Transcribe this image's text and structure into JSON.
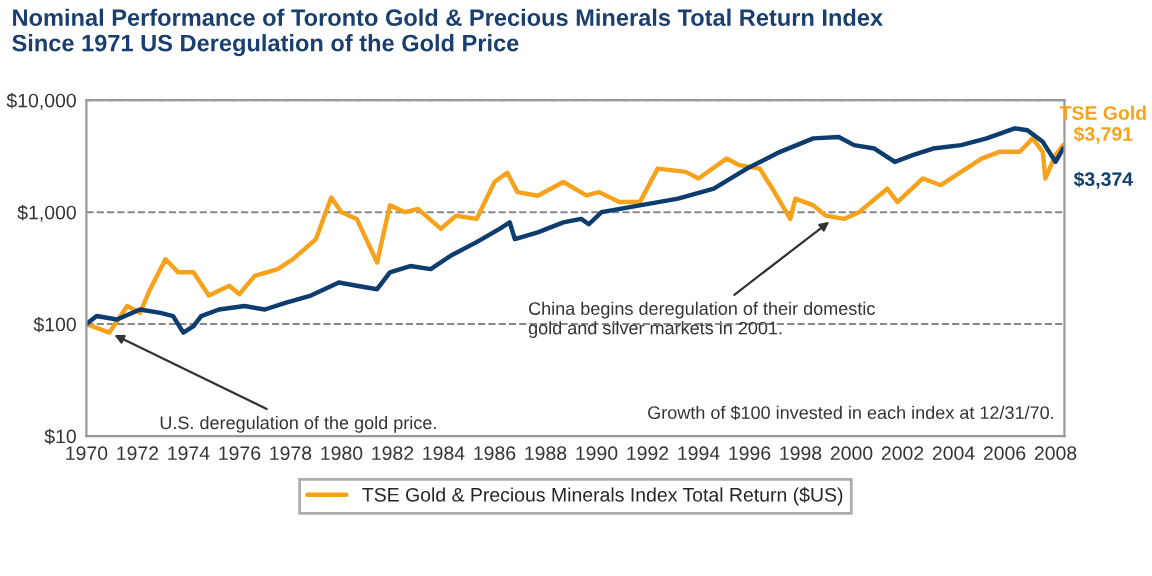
{
  "chart_data": {
    "type": "line",
    "title": "Nominal Performance of Toronto Gold & Precious Minerals Total Return Index\nSince 1971 US Deregulation of the Gold Price",
    "log": "y",
    "grid": "y",
    "line_style": "solid",
    "marker": "none",
    "legend": "bottom",
    "xlim": [
      1970,
      2008.35
    ],
    "xticks": [
      1970,
      1972,
      1974,
      1976,
      1978,
      1980,
      1982,
      1984,
      1986,
      1988,
      1990,
      1992,
      1994,
      1996,
      1998,
      2000,
      2002,
      2004,
      2006,
      2008
    ],
    "ylim": [
      10,
      10000
    ],
    "yticks": [
      {
        "value": 10,
        "label": "$10"
      },
      {
        "value": 100,
        "label": "$100"
      },
      {
        "value": 1000,
        "label": "$1,000"
      },
      {
        "value": 10000,
        "label": "$10,000"
      }
    ],
    "series": [
      {
        "name": "TSE Gold & Precious Minerals Index Total Return ($US)",
        "color": "#f7a21b",
        "x": [
          1970,
          1970.9,
          1971.6,
          1972.1,
          1972.5,
          1973.1,
          1973.6,
          1974.2,
          1974.8,
          1975.6,
          1976.0,
          1976.6,
          1977.5,
          1978.1,
          1979.0,
          1979.6,
          1980.0,
          1980.6,
          1981.4,
          1981.9,
          1982.5,
          1983.0,
          1983.9,
          1984.5,
          1985.3,
          1986.0,
          1986.5,
          1986.9,
          1987.7,
          1988.7,
          1989.6,
          1990.1,
          1990.9,
          1991.7,
          1992.4,
          1993.5,
          1994.0,
          1995.1,
          1995.6,
          1996.4,
          1996.9,
          1997.6,
          1997.8,
          1998.5,
          1999.0,
          1999.7,
          2000.3,
          2001.4,
          2001.8,
          2002.8,
          2003.5,
          2004.3,
          2005.1,
          2005.8,
          2006.6,
          2007.1,
          2007.5,
          2007.6,
          2008.0,
          2008.3
        ],
        "values": [
          100,
          84,
          145,
          126,
          205,
          380,
          290,
          290,
          180,
          220,
          185,
          270,
          310,
          380,
          575,
          1350,
          1000,
          870,
          355,
          1150,
          1000,
          1070,
          710,
          930,
          870,
          1860,
          2250,
          1510,
          1400,
          1860,
          1410,
          1510,
          1230,
          1230,
          2450,
          2290,
          2000,
          3010,
          2630,
          2450,
          1620,
          870,
          1320,
          1150,
          930,
          870,
          1000,
          1620,
          1230,
          2000,
          1740,
          2290,
          3010,
          3460,
          3460,
          4560,
          3460,
          2000,
          3230,
          3970
        ]
      },
      {
        "color": "#0d3c6e",
        "x": [
          1970,
          1970.4,
          1971.2,
          1972.1,
          1972.9,
          1973.4,
          1973.8,
          1974.2,
          1974.5,
          1975.2,
          1976.2,
          1977.0,
          1977.8,
          1978.8,
          1979.9,
          1980.6,
          1981.4,
          1981.9,
          1982.7,
          1983.5,
          1984.3,
          1985.3,
          1986.2,
          1986.6,
          1986.8,
          1987.7,
          1988.7,
          1989.4,
          1989.7,
          1990.2,
          1991.7,
          1993.2,
          1994.6,
          1995.9,
          1997.2,
          1998.5,
          1999.5,
          2000.1,
          2000.9,
          2001.7,
          2002.4,
          2003.2,
          2004.3,
          2005.3,
          2006.4,
          2006.9,
          2007.5,
          2008.0,
          2008.3
        ],
        "values": [
          100,
          118,
          110,
          135,
          126,
          118,
          84,
          96,
          118,
          135,
          145,
          135,
          155,
          180,
          235,
          220,
          205,
          290,
          330,
          310,
          410,
          540,
          710,
          810,
          575,
          660,
          810,
          870,
          780,
          1000,
          1150,
          1320,
          1620,
          2450,
          3460,
          4560,
          4690,
          3970,
          3700,
          2810,
          3230,
          3700,
          3970,
          4560,
          5600,
          5400,
          4250,
          2810,
          3700
        ]
      }
    ],
    "annotations": [
      {
        "text": "TSE Gold\n$3,791",
        "x": 2008.35,
        "y": 3791
      },
      {
        "text": "$3,374",
        "x": 2008.35,
        "y": 3374
      },
      {
        "text": "U.S. deregulation of the gold price.",
        "x": 1970.9,
        "y": 84
      },
      {
        "text": "China begins deregulation of their domestic\ngold and silver markets in 2001.",
        "x": 1999.3,
        "y": 880
      },
      "Growth of $100 invested in each index at 12/31/70."
    ]
  }
}
